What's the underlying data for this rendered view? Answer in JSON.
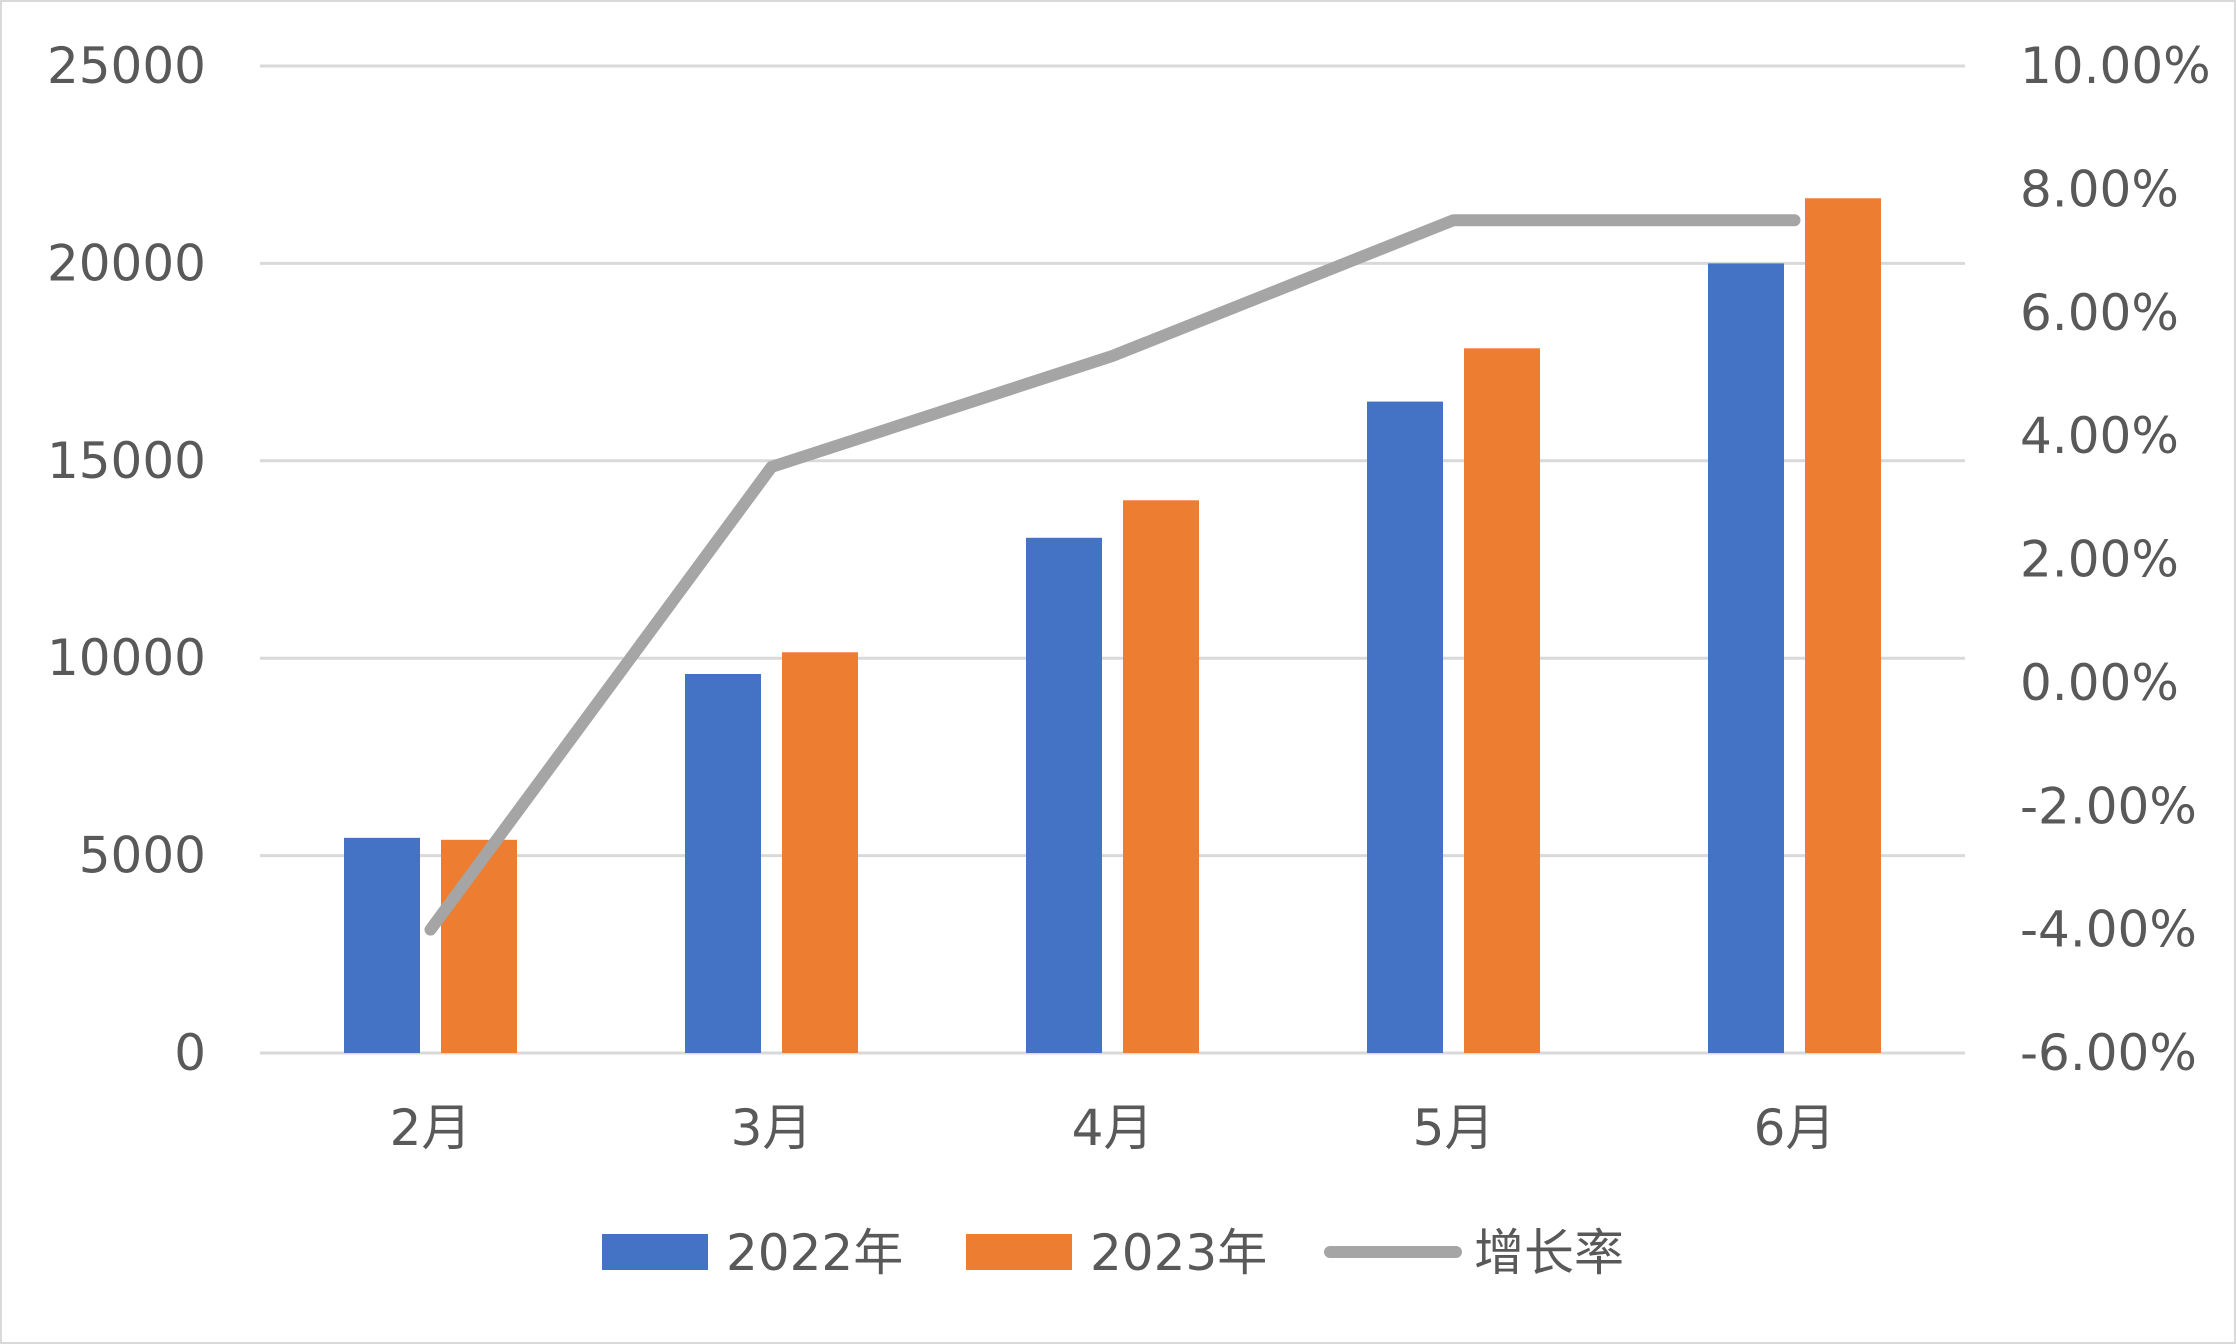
{
  "chart_data": {
    "type": "bar",
    "categories": [
      "2月",
      "3月",
      "4月",
      "5月",
      "6月"
    ],
    "series": [
      {
        "name": "2022年",
        "type": "bar",
        "axis": "left",
        "color": "#4472c4",
        "values": [
          5450,
          9600,
          13050,
          16500,
          20000
        ]
      },
      {
        "name": "2023年",
        "type": "bar",
        "axis": "left",
        "color": "#ed7d31",
        "values": [
          5400,
          10150,
          14000,
          17850,
          21650
        ]
      },
      {
        "name": "增长率",
        "type": "line",
        "axis": "right",
        "color": "#a5a5a5",
        "values": [
          -4.0,
          3.5,
          5.3,
          7.5,
          7.5
        ]
      }
    ],
    "y_left": {
      "min": 0,
      "max": 25000,
      "ticks": [
        "0",
        "5000",
        "10000",
        "15000",
        "20000",
        "25000"
      ]
    },
    "y_right": {
      "min": -6,
      "max": 10,
      "ticks": [
        "-6.00%",
        "-4.00%",
        "-2.00%",
        "0.00%",
        "2.00%",
        "4.00%",
        "6.00%",
        "8.00%",
        "10.00%"
      ]
    },
    "grid": true,
    "gridline_color": "#d9d9d9",
    "legend": {
      "position": "bottom",
      "entries": [
        "2022年",
        "2023年",
        "增长率"
      ]
    },
    "title": "",
    "xlabel": "",
    "ylabel": ""
  }
}
